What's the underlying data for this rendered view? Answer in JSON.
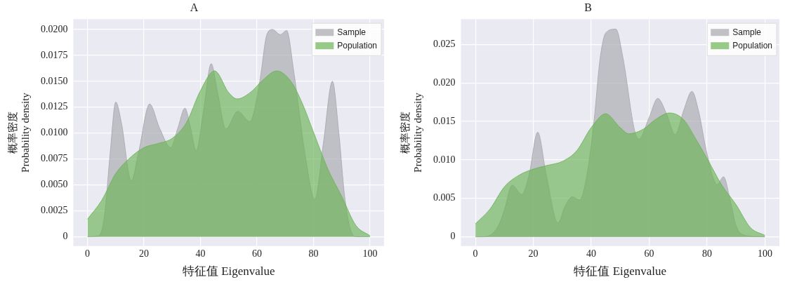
{
  "chart_data": [
    {
      "type": "area",
      "title": "A",
      "xlabel": "特征值 Eigenvalue",
      "ylabel": "概率密度\nProbability density",
      "xlim": [
        -5,
        105
      ],
      "xticks": [
        0,
        20,
        40,
        60,
        80,
        100
      ],
      "ylim": [
        -0.0009,
        0.021
      ],
      "yticks": [
        0,
        0.0025,
        {
          "value": 0.005,
          "label": "0.0050"
        },
        0.0075,
        {
          "value": 0.01,
          "label": "0.0100"
        },
        0.0125,
        {
          "value": 0.015,
          "label": "0.0150"
        },
        0.0175,
        {
          "value": 0.02,
          "label": "0.0200"
        }
      ],
      "grid": true,
      "legend": "top right",
      "series": [
        {
          "name": "Sample",
          "color": "#a8a8ad",
          "x": [
            0,
            4,
            6,
            8,
            10,
            12,
            15.5,
            18,
            22,
            25.5,
            29.5,
            32,
            34.5,
            36.5,
            38.5,
            41,
            43.8,
            46,
            49,
            53.2,
            57.5,
            61,
            63.5,
            65.5,
            68.3,
            70.5,
            73,
            77,
            80.5,
            83.5,
            86.7,
            89,
            91,
            93,
            95,
            100
          ],
          "values": [
            0,
            0.0001,
            0.002,
            0.008,
            0.013,
            0.011,
            0.0054,
            0.008,
            0.0128,
            0.0105,
            0.0086,
            0.0105,
            0.0124,
            0.0105,
            0.0083,
            0.012,
            0.0167,
            0.014,
            0.0104,
            0.0121,
            0.0111,
            0.015,
            0.0195,
            0.02,
            0.0195,
            0.0199,
            0.016,
            0.008,
            0.0036,
            0.009,
            0.015,
            0.01,
            0.004,
            0.0008,
            0,
            0
          ]
        },
        {
          "name": "Population",
          "color": "#6cb356",
          "x": [
            0,
            5,
            10,
            15,
            20,
            25,
            30,
            35,
            40,
            45,
            50,
            53,
            58,
            62,
            67,
            72,
            76,
            80,
            85,
            90,
            95,
            100
          ],
          "values": [
            0.0017,
            0.0035,
            0.0061,
            0.0076,
            0.0086,
            0.009,
            0.0095,
            0.011,
            0.0141,
            0.016,
            0.0139,
            0.0133,
            0.014,
            0.0151,
            0.016,
            0.015,
            0.0129,
            0.0101,
            0.0066,
            0.0039,
            0.0011,
            0.0001
          ]
        }
      ]
    },
    {
      "type": "area",
      "title": "B",
      "xlabel": "特征值 Eigenvalue",
      "ylabel": "概率密度\nProbability density",
      "xlim": [
        -5,
        105
      ],
      "xticks": [
        0,
        20,
        40,
        60,
        80,
        100
      ],
      "ylim": [
        -0.0012,
        0.0283
      ],
      "yticks": [
        0,
        0.005,
        {
          "value": 0.01,
          "label": "0.010"
        },
        0.015,
        {
          "value": 0.02,
          "label": "0.020"
        },
        0.025
      ],
      "grid": true,
      "legend": "top right",
      "series": [
        {
          "name": "Sample",
          "color": "#a8a8ad",
          "x": [
            0,
            2,
            5,
            8,
            10,
            12.7,
            16,
            18.5,
            21.5,
            24.5,
            28.5,
            31,
            33.5,
            36,
            38.5,
            41,
            43,
            45,
            48.5,
            51,
            55,
            56.5,
            60,
            63,
            66,
            69,
            72,
            74.8,
            77,
            80,
            83.5,
            85.7,
            88,
            90,
            93,
            100
          ],
          "values": [
            0,
            0,
            0.0002,
            0.0015,
            0.0035,
            0.0067,
            0.0055,
            0.008,
            0.0136,
            0.008,
            0.0018,
            0.004,
            0.0052,
            0.0048,
            0.008,
            0.0152,
            0.023,
            0.0265,
            0.027,
            0.0232,
            0.0138,
            0.0127,
            0.0155,
            0.018,
            0.016,
            0.0133,
            0.0165,
            0.0189,
            0.0165,
            0.0108,
            0.0068,
            0.0078,
            0.0048,
            0.0015,
            0.0002,
            0
          ]
        },
        {
          "name": "Population",
          "color": "#6cb356",
          "x": [
            0,
            5,
            10,
            15,
            20,
            25,
            30,
            35,
            40,
            45,
            50,
            53,
            58,
            62,
            67,
            72,
            76,
            80,
            85,
            90,
            95,
            100
          ],
          "values": [
            0.0017,
            0.0036,
            0.0065,
            0.008,
            0.0088,
            0.0093,
            0.0098,
            0.0112,
            0.0142,
            0.016,
            0.0142,
            0.0134,
            0.014,
            0.0152,
            0.0161,
            0.0152,
            0.0128,
            0.0102,
            0.0068,
            0.0042,
            0.0012,
            0.0002
          ]
        }
      ]
    }
  ]
}
